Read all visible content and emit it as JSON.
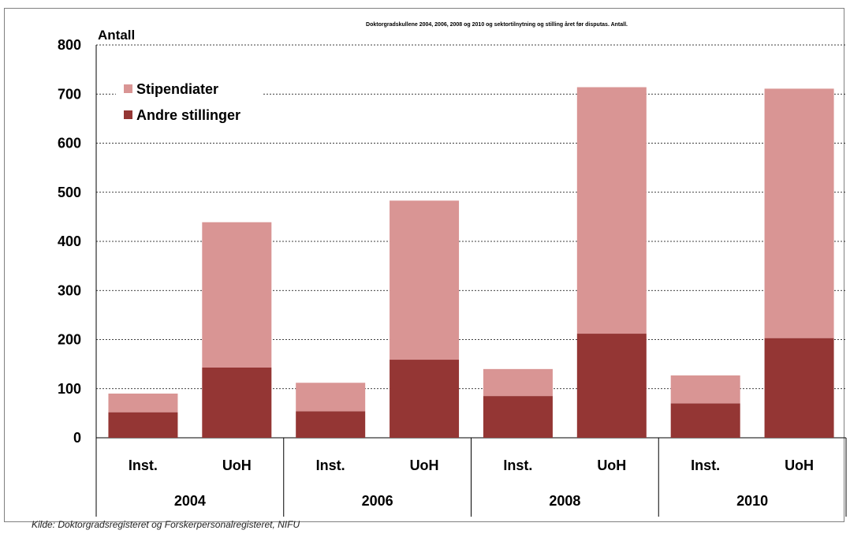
{
  "chart_data": {
    "type": "bar",
    "stacked": true,
    "title": "Doktorgradskullene 2004, 2006, 2008 og 2010 og sektortilnytning og stilling året før disputas. Antall.",
    "ylabel": "Antall",
    "xlabel": "",
    "ylim": [
      0,
      800
    ],
    "yticks": [
      0,
      100,
      200,
      300,
      400,
      500,
      600,
      700,
      800
    ],
    "grid": true,
    "legend_position": "top-left",
    "groups": [
      {
        "label": "2004",
        "categories": [
          "Inst.",
          "UoH"
        ]
      },
      {
        "label": "2006",
        "categories": [
          "Inst.",
          "UoH"
        ]
      },
      {
        "label": "2008",
        "categories": [
          "Inst.",
          "UoH"
        ]
      },
      {
        "label": "2010",
        "categories": [
          "Inst.",
          "UoH"
        ]
      }
    ],
    "categories": [
      "Inst.",
      "UoH",
      "Inst.",
      "UoH",
      "Inst.",
      "UoH",
      "Inst.",
      "UoH"
    ],
    "series": [
      {
        "name": "Andre stillinger",
        "color": "#943634",
        "values": [
          52,
          143,
          54,
          159,
          85,
          212,
          70,
          203
        ]
      },
      {
        "name": "Stipendiater",
        "color": "#d99594",
        "values": [
          38,
          296,
          58,
          324,
          55,
          502,
          57,
          508
        ]
      }
    ]
  },
  "source_note": "Kilde: Doktorgradsregisteret og Forskerpersonalregisteret, NIFU"
}
